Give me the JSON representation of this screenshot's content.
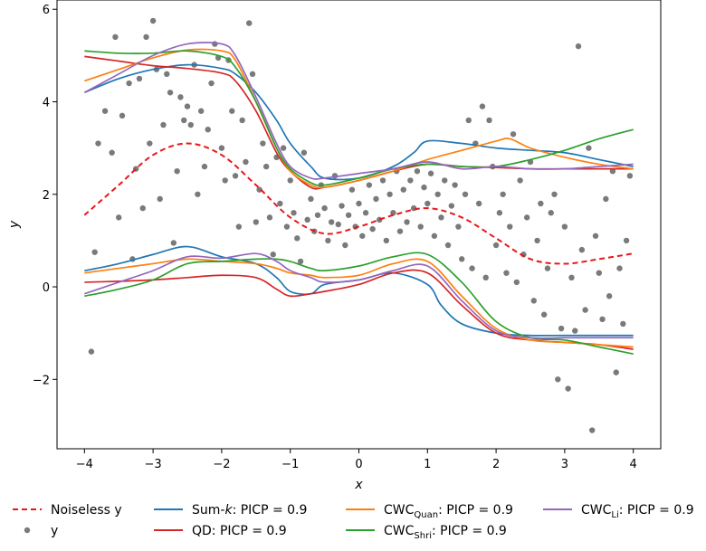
{
  "chart_data": {
    "type": "line",
    "xlabel": "x",
    "ylabel": "y",
    "xlim": [
      -4.4,
      4.4
    ],
    "ylim": [
      -3.5,
      6.2
    ],
    "xticks": [
      -4,
      -3,
      -2,
      -1,
      0,
      1,
      2,
      3,
      4
    ],
    "yticks": [
      -2,
      0,
      2,
      4,
      6
    ],
    "xtick_labels": [
      "−4",
      "−3",
      "−2",
      "−1",
      "0",
      "1",
      "2",
      "3",
      "4"
    ],
    "ytick_labels": [
      "−2",
      "0",
      "2",
      "4",
      "6"
    ],
    "grid": false,
    "legend_position": "bottom",
    "colors": {
      "noiseless": "#e8161b",
      "points": "#4d4d4d",
      "sumk": "#1f77b4",
      "qd": "#d62728",
      "cwc_quan": "#ff7f0e",
      "cwc_shri": "#2ca02c",
      "cwc_li": "#9467bd"
    },
    "legend": [
      {
        "key": "noiseless",
        "text": "Noiseless y",
        "style": "dashed"
      },
      {
        "key": "points",
        "text": "y",
        "style": "marker"
      },
      {
        "key": "sumk",
        "text": "Sum-k: PICP = 0.9",
        "style": "line"
      },
      {
        "key": "qd",
        "text": "QD: PICP = 0.9",
        "style": "line"
      },
      {
        "key": "cwc_quan",
        "text": "CWC",
        "sub": "Quan",
        "suffix": ": PICP = 0.9",
        "style": "line"
      },
      {
        "key": "cwc_shri",
        "text": "CWC",
        "sub": "Shri",
        "suffix": ": PICP = 0.9",
        "style": "line"
      },
      {
        "key": "cwc_li",
        "text": "CWC",
        "sub": "Li",
        "suffix": ": PICP = 0.9",
        "style": "line"
      }
    ],
    "noiseless_y": {
      "x": [
        -4,
        -3.5,
        -3,
        -2.5,
        -2,
        -1.5,
        -1,
        -0.5,
        0,
        0.5,
        1,
        1.5,
        2,
        2.5,
        3,
        3.5,
        4
      ],
      "y": [
        1.55,
        2.2,
        2.85,
        3.1,
        2.85,
        2.2,
        1.5,
        1.15,
        1.3,
        1.55,
        1.7,
        1.5,
        1.05,
        0.6,
        0.5,
        0.6,
        0.72
      ]
    },
    "series": [
      {
        "key": "sumk",
        "upper": {
          "x": [
            -4,
            -3.5,
            -3,
            -2.5,
            -2,
            -1.8,
            -1.5,
            -1.2,
            -1,
            -0.7,
            -0.5,
            0,
            0.5,
            0.8,
            1,
            1.5,
            2,
            2.5,
            3,
            3.5,
            4
          ],
          "y": [
            4.2,
            4.5,
            4.7,
            4.8,
            4.72,
            4.6,
            4.2,
            3.6,
            3.1,
            2.6,
            2.35,
            2.35,
            2.6,
            2.9,
            3.15,
            3.1,
            3.0,
            2.95,
            2.9,
            2.75,
            2.6
          ]
        },
        "lower": {
          "x": [
            -4,
            -3.5,
            -3,
            -2.5,
            -2,
            -1.5,
            -1.2,
            -1,
            -0.7,
            -0.5,
            0,
            0.5,
            1,
            1.2,
            1.5,
            2,
            2.5,
            3,
            3.5,
            4
          ],
          "y": [
            0.35,
            0.5,
            0.7,
            0.87,
            0.65,
            0.5,
            0.2,
            -0.1,
            -0.15,
            0.05,
            0.15,
            0.3,
            0.05,
            -0.4,
            -0.8,
            -1.0,
            -1.05,
            -1.05,
            -1.05,
            -1.05
          ]
        }
      },
      {
        "key": "qd",
        "upper": {
          "x": [
            -4,
            -3.5,
            -3,
            -2.5,
            -2,
            -1.8,
            -1.5,
            -1.2,
            -1,
            -0.7,
            -0.5,
            0,
            0.5,
            1,
            1.5,
            2,
            2.5,
            3,
            3.5,
            4
          ],
          "y": [
            4.98,
            4.88,
            4.78,
            4.72,
            4.62,
            4.45,
            3.8,
            2.9,
            2.5,
            2.15,
            2.15,
            2.3,
            2.5,
            2.65,
            2.6,
            2.58,
            2.55,
            2.55,
            2.55,
            2.55
          ]
        },
        "lower": {
          "x": [
            -4,
            -3.5,
            -3,
            -2.5,
            -2,
            -1.5,
            -1.2,
            -1,
            -0.7,
            -0.5,
            0,
            0.5,
            1,
            1.5,
            2,
            2.5,
            3,
            3.5,
            4
          ],
          "y": [
            0.1,
            0.12,
            0.15,
            0.2,
            0.25,
            0.2,
            -0.05,
            -0.2,
            -0.15,
            -0.1,
            0.05,
            0.3,
            0.3,
            -0.4,
            -1.0,
            -1.15,
            -1.2,
            -1.25,
            -1.35
          ]
        }
      },
      {
        "key": "cwc_quan",
        "upper": {
          "x": [
            -4,
            -3.5,
            -3,
            -2.5,
            -2,
            -1.8,
            -1.5,
            -1.2,
            -1,
            -0.7,
            -0.5,
            0,
            0.5,
            1,
            1.5,
            2,
            2.2,
            2.5,
            3,
            3.5,
            4
          ],
          "y": [
            4.45,
            4.7,
            4.95,
            5.12,
            5.1,
            4.9,
            4.0,
            3.0,
            2.5,
            2.2,
            2.15,
            2.3,
            2.5,
            2.75,
            2.95,
            3.15,
            3.2,
            3.0,
            2.8,
            2.65,
            2.55
          ]
        },
        "lower": {
          "x": [
            -4,
            -3.5,
            -3,
            -2.5,
            -2,
            -1.5,
            -1.2,
            -1,
            -0.7,
            -0.5,
            0,
            0.5,
            1,
            1.5,
            2,
            2.5,
            3,
            3.5,
            4
          ],
          "y": [
            0.3,
            0.4,
            0.5,
            0.6,
            0.55,
            0.5,
            0.4,
            0.3,
            0.25,
            0.2,
            0.25,
            0.5,
            0.55,
            -0.2,
            -0.9,
            -1.15,
            -1.2,
            -1.25,
            -1.3
          ]
        }
      },
      {
        "key": "cwc_shri",
        "upper": {
          "x": [
            -4,
            -3.5,
            -3,
            -2.5,
            -2,
            -1.8,
            -1.5,
            -1.2,
            -1,
            -0.7,
            -0.5,
            0,
            0.5,
            1,
            1.5,
            2,
            2.5,
            3,
            3.5,
            4
          ],
          "y": [
            5.1,
            5.05,
            5.05,
            5.1,
            4.98,
            4.75,
            4.0,
            3.0,
            2.55,
            2.25,
            2.2,
            2.35,
            2.55,
            2.65,
            2.6,
            2.6,
            2.75,
            2.95,
            3.2,
            3.4
          ]
        },
        "lower": {
          "x": [
            -4,
            -3.5,
            -3,
            -2.5,
            -2,
            -1.5,
            -1.2,
            -1,
            -0.7,
            -0.5,
            0,
            0.5,
            1,
            1.5,
            2,
            2.5,
            3,
            3.5,
            4
          ],
          "y": [
            -0.2,
            -0.05,
            0.15,
            0.5,
            0.55,
            0.6,
            0.6,
            0.55,
            0.4,
            0.35,
            0.45,
            0.65,
            0.7,
            0.1,
            -0.75,
            -1.1,
            -1.15,
            -1.3,
            -1.45
          ]
        }
      },
      {
        "key": "cwc_li",
        "upper": {
          "x": [
            -4,
            -3.5,
            -3,
            -2.5,
            -2,
            -1.8,
            -1.5,
            -1.2,
            -1,
            -0.7,
            -0.5,
            0,
            0.5,
            1,
            1.5,
            2,
            2.5,
            3,
            3.5,
            4
          ],
          "y": [
            4.2,
            4.6,
            5.0,
            5.25,
            5.25,
            5.0,
            4.1,
            3.1,
            2.6,
            2.35,
            2.35,
            2.45,
            2.55,
            2.7,
            2.55,
            2.6,
            2.55,
            2.55,
            2.6,
            2.65
          ]
        },
        "lower": {
          "x": [
            -4,
            -3.5,
            -3,
            -2.5,
            -2,
            -1.5,
            -1.2,
            -1,
            -0.7,
            -0.5,
            0,
            0.5,
            1,
            1.5,
            2,
            2.5,
            3,
            3.5,
            4
          ],
          "y": [
            -0.15,
            0.1,
            0.35,
            0.65,
            0.62,
            0.72,
            0.55,
            0.35,
            0.2,
            0.1,
            0.15,
            0.35,
            0.45,
            -0.3,
            -0.95,
            -1.1,
            -1.1,
            -1.1,
            -1.1
          ]
        }
      }
    ],
    "points": [
      [
        -3.8,
        3.1
      ],
      [
        -3.9,
        -1.4
      ],
      [
        -3.85,
        0.75
      ],
      [
        -3.7,
        3.8
      ],
      [
        -3.6,
        2.9
      ],
      [
        -3.55,
        5.4
      ],
      [
        -3.5,
        1.5
      ],
      [
        -3.45,
        3.7
      ],
      [
        -3.35,
        4.4
      ],
      [
        -3.3,
        0.6
      ],
      [
        -3.25,
        2.55
      ],
      [
        -3.2,
        4.5
      ],
      [
        -3.15,
        1.7
      ],
      [
        -3.1,
        5.4
      ],
      [
        -3.05,
        3.1
      ],
      [
        -3.0,
        5.75
      ],
      [
        -2.95,
        4.7
      ],
      [
        -2.9,
        1.9
      ],
      [
        -2.85,
        3.5
      ],
      [
        -2.8,
        4.6
      ],
      [
        -2.75,
        4.2
      ],
      [
        -2.7,
        0.95
      ],
      [
        -2.65,
        2.5
      ],
      [
        -2.6,
        4.1
      ],
      [
        -2.55,
        3.6
      ],
      [
        -2.5,
        3.9
      ],
      [
        -2.45,
        3.5
      ],
      [
        -2.4,
        4.8
      ],
      [
        -2.35,
        2.0
      ],
      [
        -2.3,
        3.8
      ],
      [
        -2.25,
        2.6
      ],
      [
        -2.2,
        3.4
      ],
      [
        -2.15,
        4.4
      ],
      [
        -2.1,
        5.25
      ],
      [
        -2.05,
        4.95
      ],
      [
        -2.0,
        3.0
      ],
      [
        -1.95,
        2.3
      ],
      [
        -1.9,
        4.9
      ],
      [
        -1.85,
        3.8
      ],
      [
        -1.8,
        2.4
      ],
      [
        -1.75,
        1.3
      ],
      [
        -1.7,
        3.6
      ],
      [
        -1.65,
        2.7
      ],
      [
        -1.6,
        5.7
      ],
      [
        -1.55,
        4.6
      ],
      [
        -1.5,
        1.4
      ],
      [
        -1.45,
        2.1
      ],
      [
        -1.4,
        3.1
      ],
      [
        -1.35,
        2.6
      ],
      [
        -1.3,
        1.5
      ],
      [
        -1.25,
        0.7
      ],
      [
        -1.2,
        2.8
      ],
      [
        -1.15,
        1.8
      ],
      [
        -1.1,
        3.0
      ],
      [
        -1.05,
        1.3
      ],
      [
        -1.0,
        2.3
      ],
      [
        -0.95,
        1.6
      ],
      [
        -0.9,
        1.05
      ],
      [
        -0.85,
        0.55
      ],
      [
        -0.8,
        2.9
      ],
      [
        -0.75,
        1.45
      ],
      [
        -0.7,
        1.9
      ],
      [
        -0.65,
        1.2
      ],
      [
        -0.6,
        1.55
      ],
      [
        -0.55,
        2.2
      ],
      [
        -0.5,
        1.7
      ],
      [
        -0.45,
        1.0
      ],
      [
        -0.4,
        1.4
      ],
      [
        -0.35,
        2.4
      ],
      [
        -0.3,
        1.35
      ],
      [
        -0.25,
        1.75
      ],
      [
        -0.2,
        0.9
      ],
      [
        -0.15,
        1.55
      ],
      [
        -0.1,
        2.1
      ],
      [
        -0.05,
        1.3
      ],
      [
        0.0,
        1.8
      ],
      [
        0.05,
        1.1
      ],
      [
        0.1,
        1.6
      ],
      [
        0.15,
        2.2
      ],
      [
        0.2,
        1.25
      ],
      [
        0.25,
        1.9
      ],
      [
        0.3,
        1.45
      ],
      [
        0.35,
        2.3
      ],
      [
        0.4,
        1.0
      ],
      [
        0.45,
        2.0
      ],
      [
        0.5,
        1.6
      ],
      [
        0.55,
        2.5
      ],
      [
        0.6,
        1.2
      ],
      [
        0.65,
        2.1
      ],
      [
        0.7,
        1.4
      ],
      [
        0.75,
        2.3
      ],
      [
        0.8,
        1.7
      ],
      [
        0.85,
        2.5
      ],
      [
        0.9,
        1.3
      ],
      [
        0.95,
        2.15
      ],
      [
        1.0,
        1.8
      ],
      [
        1.05,
        2.45
      ],
      [
        1.1,
        1.1
      ],
      [
        1.15,
        2.0
      ],
      [
        1.2,
        1.5
      ],
      [
        1.25,
        2.3
      ],
      [
        1.3,
        0.9
      ],
      [
        1.35,
        1.75
      ],
      [
        1.4,
        2.2
      ],
      [
        1.45,
        1.3
      ],
      [
        1.5,
        0.6
      ],
      [
        1.55,
        2.0
      ],
      [
        1.6,
        3.6
      ],
      [
        1.65,
        0.4
      ],
      [
        1.7,
        3.1
      ],
      [
        1.75,
        1.8
      ],
      [
        1.8,
        3.9
      ],
      [
        1.85,
        0.2
      ],
      [
        1.9,
        3.6
      ],
      [
        1.95,
        2.6
      ],
      [
        2.0,
        0.9
      ],
      [
        2.05,
        1.6
      ],
      [
        2.1,
        2.0
      ],
      [
        2.15,
        0.3
      ],
      [
        2.2,
        1.3
      ],
      [
        2.25,
        3.3
      ],
      [
        2.3,
        0.1
      ],
      [
        2.35,
        2.3
      ],
      [
        2.4,
        0.7
      ],
      [
        2.45,
        1.5
      ],
      [
        2.5,
        2.7
      ],
      [
        2.55,
        -0.3
      ],
      [
        2.6,
        1.0
      ],
      [
        2.65,
        1.8
      ],
      [
        2.7,
        -0.6
      ],
      [
        2.75,
        0.4
      ],
      [
        2.8,
        1.6
      ],
      [
        2.85,
        2.0
      ],
      [
        2.9,
        -2.0
      ],
      [
        2.95,
        -0.9
      ],
      [
        3.0,
        1.3
      ],
      [
        3.05,
        -2.2
      ],
      [
        3.1,
        0.2
      ],
      [
        3.15,
        -0.95
      ],
      [
        3.2,
        5.2
      ],
      [
        3.25,
        0.8
      ],
      [
        3.3,
        -0.5
      ],
      [
        3.35,
        3.0
      ],
      [
        3.4,
        -3.1
      ],
      [
        3.45,
        1.1
      ],
      [
        3.5,
        0.3
      ],
      [
        3.55,
        -0.7
      ],
      [
        3.6,
        1.9
      ],
      [
        3.65,
        -0.2
      ],
      [
        3.7,
        2.5
      ],
      [
        3.75,
        -1.85
      ],
      [
        3.8,
        0.4
      ],
      [
        3.85,
        -0.8
      ],
      [
        3.9,
        1.0
      ],
      [
        3.95,
        2.4
      ]
    ]
  }
}
